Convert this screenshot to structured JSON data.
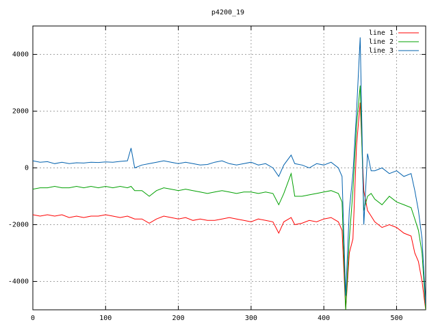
{
  "chart_data": {
    "type": "line",
    "title": "p4200_19",
    "x": [
      0,
      10,
      20,
      30,
      40,
      50,
      60,
      70,
      80,
      90,
      100,
      110,
      120,
      130,
      135,
      140,
      150,
      160,
      170,
      180,
      190,
      200,
      210,
      220,
      230,
      240,
      250,
      260,
      270,
      280,
      290,
      300,
      310,
      320,
      330,
      338,
      345,
      355,
      360,
      370,
      380,
      390,
      400,
      410,
      420,
      425,
      430,
      435,
      440,
      445,
      450,
      455,
      460,
      465,
      470,
      480,
      490,
      500,
      510,
      520,
      525,
      530,
      535,
      540
    ],
    "series": [
      {
        "name": "line 1",
        "color": "#ff0000",
        "values": [
          -1650,
          -1700,
          -1650,
          -1700,
          -1650,
          -1750,
          -1700,
          -1750,
          -1700,
          -1700,
          -1650,
          -1700,
          -1750,
          -1700,
          -1750,
          -1800,
          -1800,
          -1950,
          -1800,
          -1700,
          -1750,
          -1800,
          -1750,
          -1850,
          -1800,
          -1850,
          -1850,
          -1800,
          -1750,
          -1800,
          -1850,
          -1900,
          -1800,
          -1850,
          -1900,
          -2300,
          -1900,
          -1750,
          -2000,
          -1950,
          -1850,
          -1900,
          -1800,
          -1750,
          -1900,
          -2200,
          -5000,
          -3000,
          -2500,
          800,
          2300,
          -800,
          -1500,
          -1700,
          -1900,
          -2100,
          -2000,
          -2100,
          -2300,
          -2400,
          -3000,
          -3300,
          -4000,
          -5000
        ]
      },
      {
        "name": "line 2",
        "color": "#00a000",
        "values": [
          -750,
          -700,
          -700,
          -650,
          -700,
          -700,
          -650,
          -700,
          -650,
          -700,
          -650,
          -700,
          -650,
          -700,
          -650,
          -800,
          -800,
          -1000,
          -800,
          -700,
          -750,
          -800,
          -750,
          -800,
          -850,
          -900,
          -850,
          -800,
          -850,
          -900,
          -850,
          -850,
          -900,
          -850,
          -900,
          -1300,
          -900,
          -200,
          -1000,
          -1000,
          -950,
          -900,
          -850,
          -800,
          -900,
          -1200,
          -5000,
          -2500,
          -800,
          1500,
          2900,
          -1500,
          -1000,
          -900,
          -1100,
          -1300,
          -1000,
          -1200,
          -1300,
          -1400,
          -1800,
          -2200,
          -3000,
          -5000
        ]
      },
      {
        "name": "line 3",
        "color": "#0060ad",
        "values": [
          250,
          200,
          220,
          150,
          200,
          150,
          180,
          170,
          200,
          190,
          210,
          200,
          230,
          250,
          700,
          0,
          100,
          150,
          200,
          250,
          200,
          150,
          200,
          150,
          100,
          120,
          200,
          250,
          150,
          100,
          150,
          200,
          100,
          150,
          0,
          -300,
          100,
          450,
          150,
          100,
          0,
          150,
          100,
          200,
          0,
          -300,
          -4500,
          -1500,
          -200,
          2000,
          4600,
          -2000,
          500,
          -100,
          -100,
          0,
          -200,
          -100,
          -300,
          -200,
          -800,
          -1500,
          -2500,
          -4800
        ]
      }
    ],
    "xlim": [
      0,
      540
    ],
    "ylim": [
      -5000,
      5000
    ],
    "xticks": [
      0,
      100,
      200,
      300,
      400,
      500
    ],
    "yticks": [
      -4000,
      -2000,
      0,
      2000,
      4000
    ],
    "grid": true,
    "legend": "top-right"
  }
}
